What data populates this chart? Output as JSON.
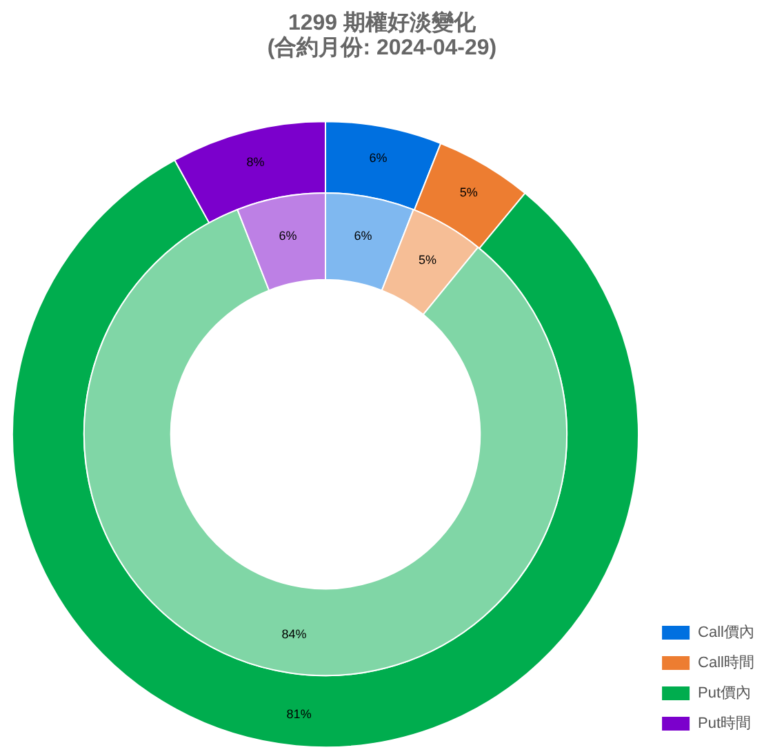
{
  "chart_data": {
    "type": "donut",
    "title": "1299 期權好淡變化",
    "subtitle": "(合約月份: 2024-04-29)",
    "categories": [
      "Call價內",
      "Call時間",
      "Put價內",
      "Put時間"
    ],
    "series": [
      {
        "colors": [
          "#0070e0",
          "#ed7d31",
          "#00ad4e",
          "#7b00cc"
        ],
        "values": [
          6,
          5,
          81,
          8
        ],
        "value_labels": [
          "6%",
          "5%",
          "81%",
          "8%"
        ]
      },
      {
        "colors": [
          "#7fb8f0",
          "#f6be96",
          "#80d6a6",
          "#bd80e5"
        ],
        "values": [
          6,
          5,
          84,
          6
        ],
        "value_labels": [
          "6%",
          "5%",
          "84%",
          "6%"
        ]
      }
    ],
    "legend": "bottom right"
  }
}
